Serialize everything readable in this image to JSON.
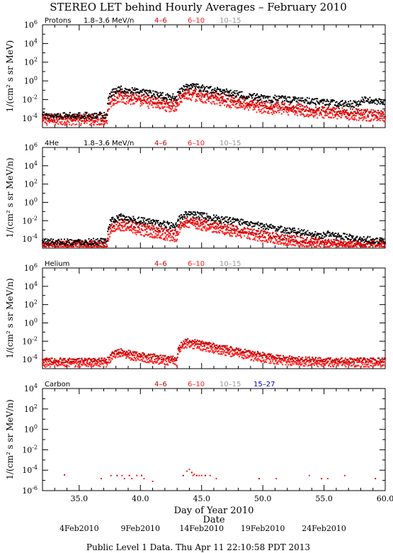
{
  "title": "STEREO LET behind Hourly Averages – February 2010",
  "footer": "Public Level 1 Data. Thu Apr 11 22:10:58 PDT 2013",
  "xlabel": "Day of Year 2010",
  "xlabel2": "Date",
  "date_ticks": [
    {
      "label": "4Feb2010",
      "x": 35.0
    },
    {
      "label": "9Feb2010",
      "x": 40.0
    },
    {
      "label": "14Feb2010",
      "x": 45.0
    },
    {
      "label": "19Feb2010",
      "x": 50.0
    },
    {
      "label": "24Feb2010",
      "x": 55.0
    }
  ],
  "colors": {
    "black": "#000000",
    "red_dark": "#cc0000",
    "red": "#ff2020",
    "gray": "#999999",
    "blue": "#0000cc"
  },
  "chart_data": [
    {
      "type": "scatter",
      "species": "Protons",
      "ylabel": "1/(cm² s sr MeV)",
      "xlim": [
        32.0,
        60.0
      ],
      "ylog": true,
      "ylim_exp": [
        -5,
        6
      ],
      "ytick_exps": [
        -4,
        -2,
        0,
        2,
        4,
        6
      ],
      "xticks": [
        35.0,
        40.0,
        45.0,
        50.0,
        55.0,
        60.0
      ],
      "show_xtick_labels": false,
      "legend": [
        {
          "label": "1.8–3.6 MeV/n",
          "color": "#000000"
        },
        {
          "label": "4–6",
          "color": "#cc0000"
        },
        {
          "label": "6–10",
          "color": "#ff2020"
        },
        {
          "label": "10–15",
          "color": "#999999"
        }
      ],
      "series": [
        {
          "name": "1.8–3.6 MeV/n",
          "color": "#000000",
          "base": 0.0002,
          "noise": 0.35,
          "events": [
            {
              "start": 37.3,
              "amp": 0.13,
              "rise": 1.0,
              "decay": 2.2
            },
            {
              "start": 43.0,
              "amp": 0.28,
              "rise": 0.9,
              "decay": 2.0
            },
            {
              "start": 50.8,
              "amp": 0.0075,
              "rise": 0.3,
              "decay": 6.0
            },
            {
              "start": 57.7,
              "amp": 0.006,
              "rise": 0.5,
              "decay": 3.0
            }
          ]
        },
        {
          "name": "4–6",
          "color": "#cc0000",
          "base": 0.00012,
          "noise": 0.4,
          "events": [
            {
              "start": 37.3,
              "amp": 0.035,
              "rise": 1.0,
              "decay": 2.0
            },
            {
              "start": 43.0,
              "amp": 0.07,
              "rise": 0.9,
              "decay": 1.9
            },
            {
              "start": 50.8,
              "amp": 0.0008,
              "rise": 0.3,
              "decay": 6.0
            }
          ]
        },
        {
          "name": "6–10",
          "color": "#ff2020",
          "base": 5e-05,
          "noise": 0.45,
          "events": [
            {
              "start": 37.3,
              "amp": 0.012,
              "rise": 1.0,
              "decay": 1.8
            },
            {
              "start": 43.0,
              "amp": 0.025,
              "rise": 0.9,
              "decay": 1.8
            },
            {
              "start": 50.8,
              "amp": 0.0003,
              "rise": 0.3,
              "decay": 6.0
            }
          ]
        }
      ]
    },
    {
      "type": "scatter",
      "species": "4He",
      "ylabel": "1/(cm² s sr MeV/n)",
      "xlim": [
        32.0,
        60.0
      ],
      "ylog": true,
      "ylim_exp": [
        -5,
        6
      ],
      "ytick_exps": [
        -4,
        -2,
        0,
        2,
        4,
        6
      ],
      "xticks": [
        35.0,
        40.0,
        45.0,
        50.0,
        55.0,
        60.0
      ],
      "show_xtick_labels": false,
      "legend": [
        {
          "label": "1.8–3.6 MeV/n",
          "color": "#000000"
        },
        {
          "label": "4–6",
          "color": "#cc0000"
        },
        {
          "label": "6–10",
          "color": "#ff2020"
        },
        {
          "label": "10–15",
          "color": "#999999"
        }
      ],
      "series": [
        {
          "name": "1.8–3.6 MeV/n",
          "color": "#000000",
          "base": 5e-05,
          "noise": 0.35,
          "events": [
            {
              "start": 37.3,
              "amp": 0.025,
              "rise": 1.0,
              "decay": 2.0
            },
            {
              "start": 43.0,
              "amp": 0.06,
              "rise": 0.9,
              "decay": 1.9
            },
            {
              "start": 55.0,
              "amp": 0.0002,
              "rise": 0.3,
              "decay": 1.0
            }
          ]
        },
        {
          "name": "4–6",
          "color": "#cc0000",
          "base": 3e-05,
          "noise": 0.35,
          "events": [
            {
              "start": 37.3,
              "amp": 0.007,
              "rise": 1.0,
              "decay": 1.8
            },
            {
              "start": 43.0,
              "amp": 0.012,
              "rise": 0.9,
              "decay": 1.7
            }
          ]
        },
        {
          "name": "6–10",
          "color": "#ff2020",
          "base": 2e-05,
          "noise": 0.35,
          "events": [
            {
              "start": 37.3,
              "amp": 0.0015,
              "rise": 1.0,
              "decay": 1.6
            },
            {
              "start": 43.0,
              "amp": 0.004,
              "rise": 0.9,
              "decay": 1.6
            }
          ]
        }
      ]
    },
    {
      "type": "scatter",
      "species": "Helium",
      "ylabel": "1/(cm² s sr MeV/n)",
      "xlim": [
        32.0,
        60.0
      ],
      "ylog": true,
      "ylim_exp": [
        -5,
        6
      ],
      "ytick_exps": [
        -4,
        -2,
        0,
        2,
        4,
        6
      ],
      "xticks": [
        35.0,
        40.0,
        45.0,
        50.0,
        55.0,
        60.0
      ],
      "show_xtick_labels": false,
      "legend": [
        {
          "label": "4–6",
          "color": "#cc0000"
        },
        {
          "label": "6–10",
          "color": "#ff2020"
        },
        {
          "label": "10–15",
          "color": "#999999"
        }
      ],
      "series": [
        {
          "name": "4–6",
          "color": "#cc0000",
          "base": 8e-05,
          "noise": 0.25,
          "events": [
            {
              "start": 37.3,
              "amp": 0.0008,
              "rise": 1.0,
              "decay": 1.6
            },
            {
              "start": 43.0,
              "amp": 0.012,
              "rise": 0.9,
              "decay": 1.6
            }
          ]
        },
        {
          "name": "6–10",
          "color": "#ff2020",
          "base": 3e-05,
          "noise": 0.3,
          "events": [
            {
              "start": 37.3,
              "amp": 0.00025,
              "rise": 1.0,
              "decay": 1.5
            },
            {
              "start": 43.0,
              "amp": 0.004,
              "rise": 0.9,
              "decay": 1.5
            }
          ]
        }
      ]
    },
    {
      "type": "scatter",
      "species": "Carbon",
      "ylabel": "1/(cm² s sr MeV/n)",
      "xlim": [
        32.0,
        60.0
      ],
      "ylog": true,
      "ylim_exp": [
        -6,
        4
      ],
      "ytick_exps": [
        -6,
        -4,
        -2,
        0,
        2,
        4
      ],
      "xticks": [
        35.0,
        40.0,
        45.0,
        50.0,
        55.0,
        60.0
      ],
      "show_xtick_labels": true,
      "legend": [
        {
          "label": "4–6",
          "color": "#cc0000"
        },
        {
          "label": "6–10",
          "color": "#ff2020"
        },
        {
          "label": "10–15",
          "color": "#999999"
        },
        {
          "label": "15–27",
          "color": "#0000cc"
        }
      ],
      "sparse_points": [
        [
          33.8,
          3.5e-05
        ],
        [
          36.8,
          1.5e-05
        ],
        [
          37.6,
          3e-05
        ],
        [
          38.1,
          3e-05
        ],
        [
          38.5,
          3e-05
        ],
        [
          38.7,
          1.5e-05
        ],
        [
          39.1,
          3e-05
        ],
        [
          39.3,
          1.5e-05
        ],
        [
          39.7,
          3e-05
        ],
        [
          40.1,
          3e-05
        ],
        [
          40.3,
          1.5e-05
        ],
        [
          41.0,
          8e-06
        ],
        [
          43.5,
          3e-05
        ],
        [
          43.8,
          8e-05
        ],
        [
          44.0,
          0.00012
        ],
        [
          44.2,
          6e-05
        ],
        [
          44.3,
          3e-05
        ],
        [
          44.4,
          4e-05
        ],
        [
          44.6,
          3e-05
        ],
        [
          44.8,
          3e-05
        ],
        [
          45.0,
          3e-05
        ],
        [
          45.3,
          3e-05
        ],
        [
          45.7,
          3e-05
        ],
        [
          46.2,
          1.5e-05
        ],
        [
          49.7,
          1.5e-05
        ],
        [
          51.1,
          1.5e-05
        ],
        [
          53.8,
          3e-05
        ],
        [
          54.8,
          1.5e-05
        ],
        [
          55.3,
          1.5e-05
        ],
        [
          56.7,
          3e-05
        ],
        [
          59.2,
          1.5e-05
        ]
      ]
    }
  ]
}
